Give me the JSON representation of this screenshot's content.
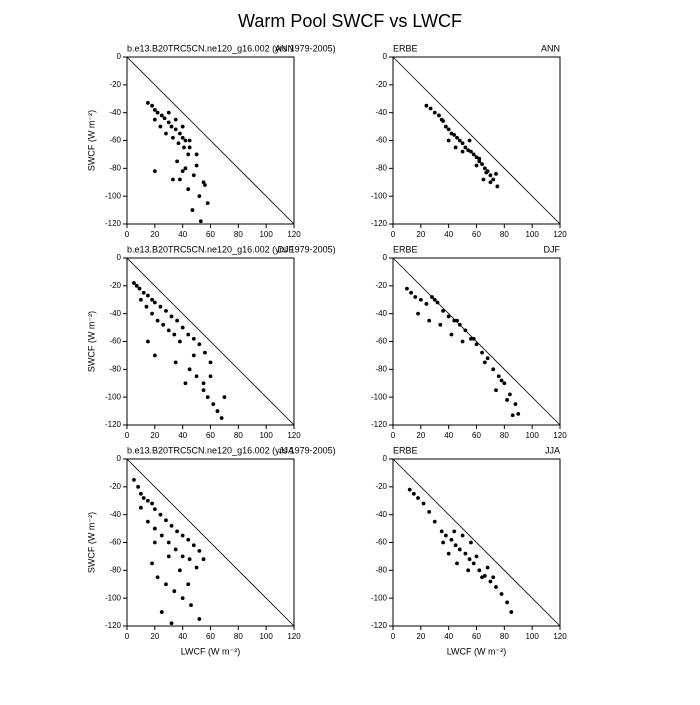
{
  "title": "Warm Pool SWCF vs LWCF",
  "chart_data": [
    {
      "type": "scatter",
      "title_left": "b.e13.B20TRC5CN.ne120_g16.002 (yrs 1979-2005)",
      "title_right": "ANN",
      "ylabel": "SWCF (W m⁻²)",
      "x": [
        15,
        18,
        20,
        22,
        25,
        27,
        30,
        32,
        35,
        38,
        40,
        42,
        45,
        20,
        24,
        28,
        33,
        37,
        41,
        44,
        30,
        35,
        40,
        45,
        50,
        36,
        42,
        48,
        55,
        38,
        44,
        52,
        58,
        47,
        53,
        40,
        50,
        56,
        20,
        33
      ],
      "values": [
        -33,
        -35,
        -38,
        -40,
        -42,
        -44,
        -47,
        -50,
        -52,
        -55,
        -58,
        -60,
        -65,
        -45,
        -50,
        -55,
        -58,
        -62,
        -65,
        -70,
        -40,
        -45,
        -50,
        -60,
        -70,
        -75,
        -80,
        -85,
        -90,
        -88,
        -95,
        -100,
        -105,
        -110,
        -118,
        -82,
        -78,
        -92,
        -82,
        -88
      ],
      "color": "#000000",
      "xlim": [
        0,
        120
      ],
      "ylim": [
        -120,
        0
      ],
      "xticks": [
        0,
        20,
        40,
        60,
        80,
        100,
        120
      ],
      "yticks": [
        0,
        -20,
        -40,
        -60,
        -80,
        -100,
        -120
      ]
    },
    {
      "type": "scatter",
      "title_left": "ERBE",
      "title_right": "ANN",
      "x": [
        24,
        27,
        30,
        33,
        36,
        38,
        40,
        42,
        44,
        46,
        48,
        50,
        52,
        54,
        56,
        58,
        60,
        62,
        64,
        66,
        68,
        70,
        72,
        75,
        35,
        45,
        55,
        65,
        50,
        60,
        70,
        40,
        62,
        67,
        74
      ],
      "values": [
        -35,
        -37,
        -40,
        -42,
        -46,
        -50,
        -52,
        -55,
        -56,
        -58,
        -60,
        -62,
        -65,
        -67,
        -68,
        -70,
        -72,
        -75,
        -77,
        -80,
        -82,
        -85,
        -88,
        -93,
        -45,
        -65,
        -60,
        -88,
        -68,
        -78,
        -90,
        -60,
        -73,
        -83,
        -84
      ],
      "color": "#000000",
      "xlim": [
        0,
        120
      ],
      "ylim": [
        -120,
        0
      ],
      "xticks": [
        0,
        20,
        40,
        60,
        80,
        100,
        120
      ],
      "yticks": [
        0,
        -20,
        -40,
        -60,
        -80,
        -100,
        -120
      ]
    },
    {
      "type": "scatter",
      "title_left": "b.e13.B20TRC5CN.ne120_g16.002 (yrs 1979-2005)",
      "title_right": "DJF",
      "ylabel": "SWCF (W m⁻²)",
      "x": [
        5,
        7,
        9,
        12,
        15,
        18,
        20,
        24,
        28,
        32,
        36,
        40,
        44,
        48,
        52,
        56,
        60,
        10,
        14,
        18,
        22,
        26,
        30,
        34,
        38,
        45,
        50,
        55,
        58,
        62,
        65,
        68,
        55,
        48,
        60,
        20,
        15,
        42,
        35,
        70
      ],
      "values": [
        -18,
        -20,
        -22,
        -25,
        -27,
        -30,
        -32,
        -35,
        -38,
        -42,
        -45,
        -50,
        -55,
        -58,
        -62,
        -68,
        -75,
        -30,
        -35,
        -40,
        -45,
        -48,
        -52,
        -55,
        -60,
        -80,
        -85,
        -90,
        -100,
        -105,
        -110,
        -115,
        -95,
        -70,
        -85,
        -70,
        -60,
        -90,
        -75,
        -100
      ],
      "color": "#000000",
      "xlim": [
        0,
        120
      ],
      "ylim": [
        -120,
        0
      ],
      "xticks": [
        0,
        20,
        40,
        60,
        80,
        100,
        120
      ],
      "yticks": [
        0,
        -20,
        -40,
        -60,
        -80,
        -100,
        -120
      ]
    },
    {
      "type": "scatter",
      "title_left": "ERBE",
      "title_right": "DJF",
      "x": [
        10,
        13,
        16,
        20,
        24,
        28,
        32,
        36,
        40,
        44,
        48,
        52,
        56,
        60,
        64,
        68,
        72,
        76,
        80,
        84,
        88,
        90,
        18,
        26,
        34,
        42,
        50,
        58,
        66,
        74,
        82,
        86,
        30,
        46,
        78
      ],
      "values": [
        -22,
        -25,
        -28,
        -30,
        -33,
        -28,
        -32,
        -38,
        -42,
        -45,
        -48,
        -52,
        -58,
        -62,
        -68,
        -72,
        -80,
        -85,
        -90,
        -98,
        -105,
        -112,
        -40,
        -45,
        -48,
        -55,
        -60,
        -58,
        -75,
        -95,
        -102,
        -113,
        -30,
        -45,
        -88
      ],
      "color": "#000000",
      "xlim": [
        0,
        120
      ],
      "ylim": [
        -120,
        0
      ],
      "xticks": [
        0,
        20,
        40,
        60,
        80,
        100,
        120
      ],
      "yticks": [
        0,
        -20,
        -40,
        -60,
        -80,
        -100,
        -120
      ]
    },
    {
      "type": "scatter",
      "title_left": "b.e13.B20TRC5CN.ne120_g16.002 (yrs 1979-2005)",
      "title_right": "JJA",
      "ylabel": "SWCF (W m⁻²)",
      "xlabel": "LWCF (W m⁻²)",
      "x": [
        5,
        8,
        10,
        12,
        15,
        18,
        20,
        24,
        28,
        32,
        36,
        40,
        44,
        48,
        52,
        55,
        10,
        15,
        20,
        25,
        30,
        35,
        40,
        45,
        50,
        18,
        22,
        28,
        34,
        40,
        46,
        52,
        25,
        32,
        38,
        44,
        30,
        20
      ],
      "values": [
        -15,
        -20,
        -25,
        -28,
        -30,
        -32,
        -36,
        -40,
        -44,
        -48,
        -52,
        -55,
        -58,
        -62,
        -66,
        -72,
        -35,
        -45,
        -50,
        -55,
        -60,
        -65,
        -70,
        -72,
        -78,
        -75,
        -85,
        -90,
        -95,
        -100,
        -105,
        -115,
        -110,
        -118,
        -80,
        -90,
        -70,
        -60
      ],
      "color": "#000000",
      "xlim": [
        0,
        120
      ],
      "ylim": [
        -120,
        0
      ],
      "xticks": [
        0,
        20,
        40,
        60,
        80,
        100,
        120
      ],
      "yticks": [
        0,
        -20,
        -40,
        -60,
        -80,
        -100,
        -120
      ]
    },
    {
      "type": "scatter",
      "title_left": "ERBE",
      "title_right": "JJA",
      "xlabel": "LWCF (W m⁻²)",
      "x": [
        12,
        15,
        18,
        22,
        26,
        30,
        35,
        38,
        42,
        45,
        48,
        52,
        55,
        58,
        62,
        66,
        70,
        74,
        78,
        82,
        85,
        40,
        44,
        50,
        56,
        60,
        64,
        68,
        72,
        46,
        54,
        36
      ],
      "values": [
        -22,
        -25,
        -28,
        -32,
        -38,
        -45,
        -52,
        -55,
        -58,
        -62,
        -65,
        -68,
        -72,
        -75,
        -80,
        -84,
        -88,
        -92,
        -97,
        -103,
        -110,
        -68,
        -52,
        -55,
        -60,
        -70,
        -85,
        -78,
        -85,
        -75,
        -80,
        -60
      ],
      "color": "#000000",
      "xlim": [
        0,
        120
      ],
      "ylim": [
        -120,
        0
      ],
      "xticks": [
        0,
        20,
        40,
        60,
        80,
        100,
        120
      ],
      "yticks": [
        0,
        -20,
        -40,
        -60,
        -80,
        -100,
        -120
      ]
    }
  ]
}
